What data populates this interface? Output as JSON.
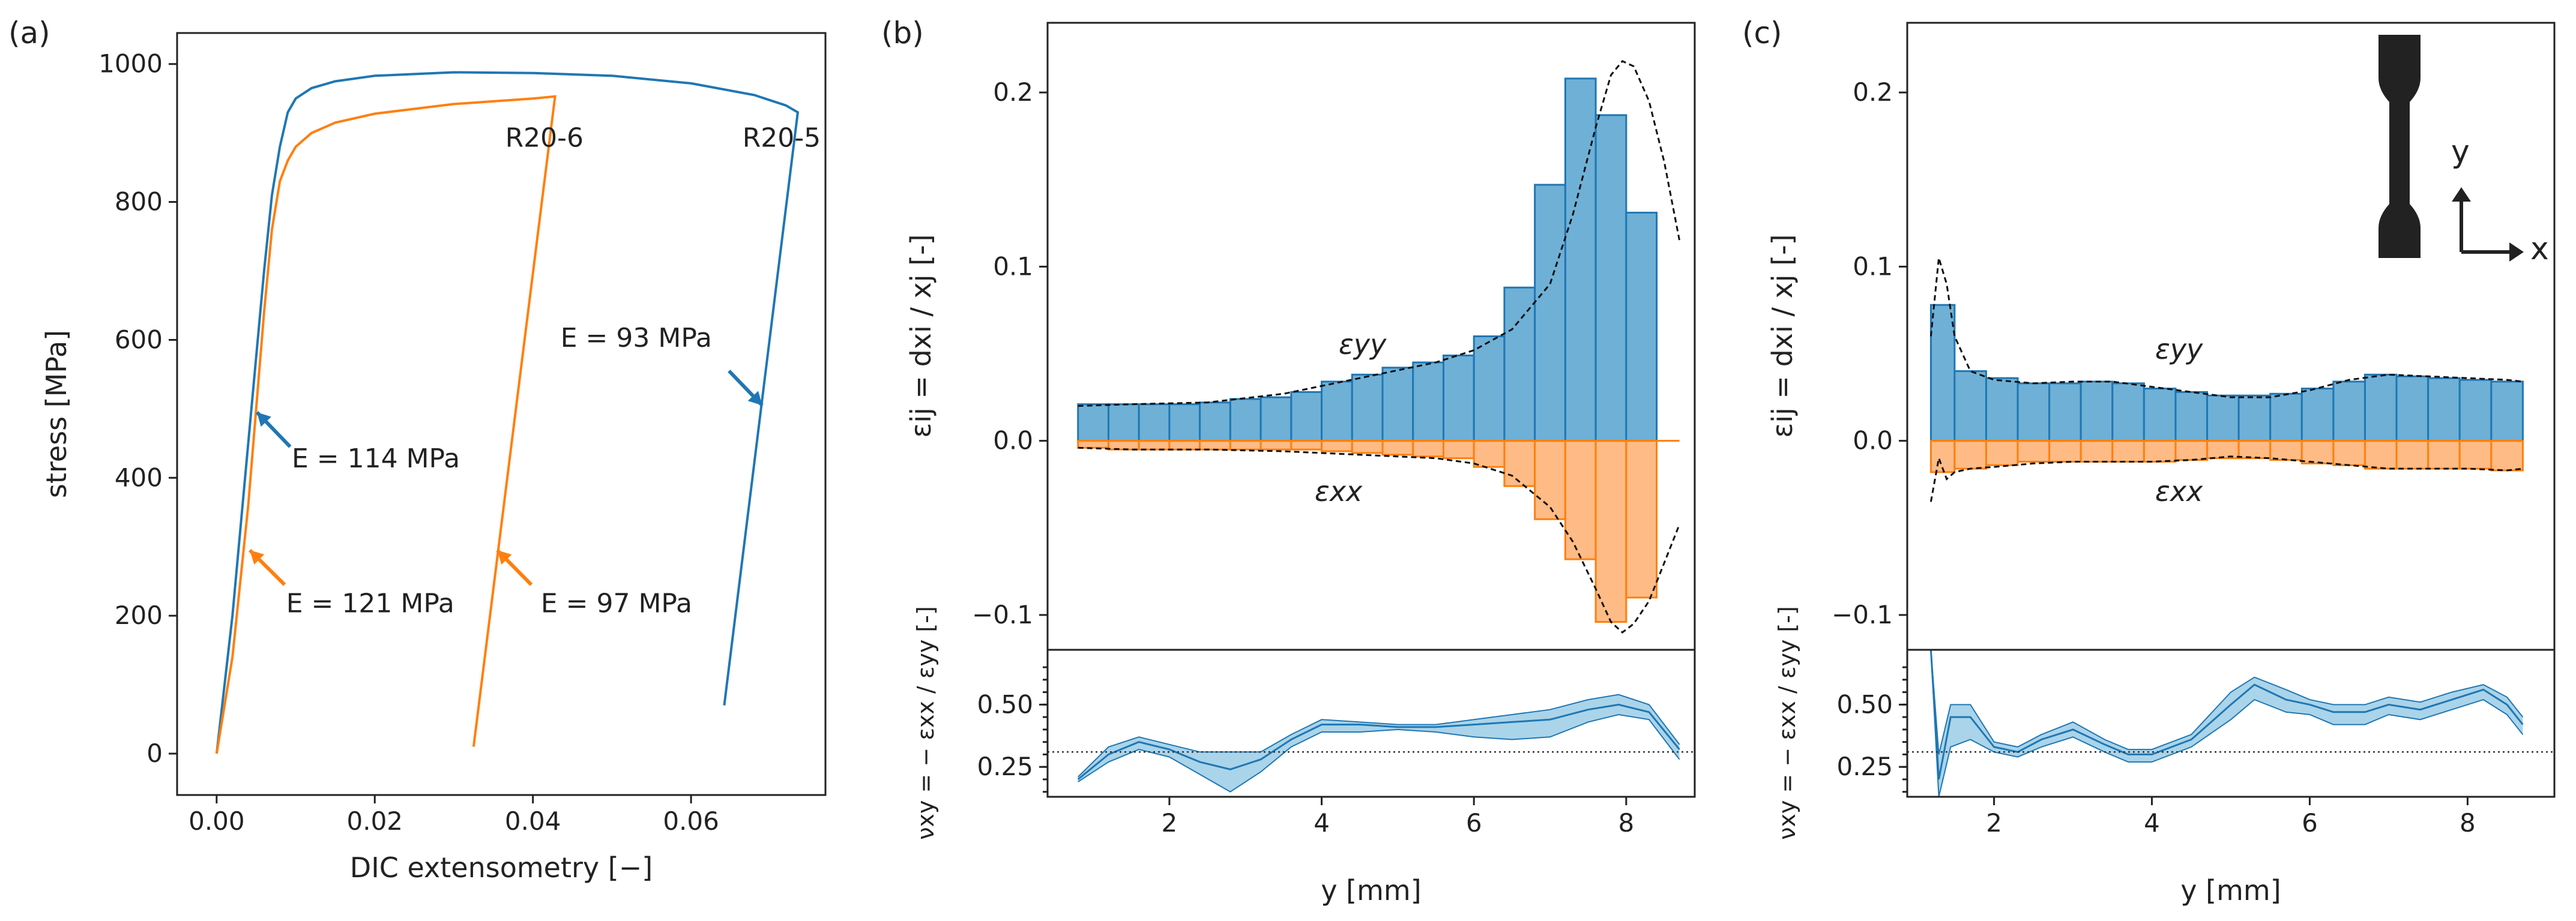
{
  "colors": {
    "blue": "#1f77b4",
    "orange": "#ff7f0e",
    "blue_fill": "#6fb0d6",
    "orange_fill": "#ffbb85",
    "band": "#8ec5e2"
  },
  "chart_data": [
    {
      "type": "line",
      "panel_label": "(a)",
      "xlabel": "DIC extensometry [−]",
      "ylabel": "stress [MPa]",
      "xlim": [
        -0.005,
        0.077
      ],
      "ylim": [
        -60,
        1045
      ],
      "xticks": [
        0.0,
        0.02,
        0.04,
        0.06
      ],
      "xtick_labels": [
        "0.00",
        "0.02",
        "0.04",
        "0.06"
      ],
      "yticks": [
        0,
        200,
        400,
        600,
        800,
        1000
      ],
      "ytick_labels": [
        "0",
        "200",
        "400",
        "600",
        "800",
        "1000"
      ],
      "series": [
        {
          "name": "R20-5",
          "color": "#1f77b4",
          "x": [
            0.0,
            0.002,
            0.004,
            0.006,
            0.007,
            0.008,
            0.009,
            0.01,
            0.012,
            0.015,
            0.02,
            0.03,
            0.04,
            0.05,
            0.06,
            0.068,
            0.072,
            0.0735,
            0.0735,
            0.0642
          ],
          "y": [
            0,
            200,
            450,
            700,
            810,
            880,
            930,
            950,
            965,
            975,
            983,
            988,
            987,
            983,
            972,
            955,
            940,
            930,
            930,
            70
          ]
        },
        {
          "name": "R20-6",
          "color": "#ff7f0e",
          "x": [
            0.0,
            0.002,
            0.004,
            0.006,
            0.007,
            0.008,
            0.009,
            0.01,
            0.012,
            0.015,
            0.02,
            0.03,
            0.04,
            0.0428,
            0.0428,
            0.0325
          ],
          "y": [
            0,
            140,
            360,
            640,
            760,
            830,
            860,
            880,
            900,
            915,
            928,
            942,
            950,
            953,
            953,
            10
          ]
        }
      ],
      "annotations": [
        {
          "text": "R20-6",
          "x": 0.0365,
          "y": 880
        },
        {
          "text": "R20-5",
          "x": 0.0665,
          "y": 880
        },
        {
          "text": "E = 114 MPa",
          "x": 0.0095,
          "y": 415
        },
        {
          "text": "E = 121 MPa",
          "x": 0.0088,
          "y": 205
        },
        {
          "text": "E = 97 MPa",
          "x": 0.041,
          "y": 205
        },
        {
          "text": "E = 93 MPa",
          "x": 0.0435,
          "y": 590
        }
      ]
    },
    {
      "type": "bar",
      "panel_label": "(b)",
      "ylabel": "εij = dxi / xj [-]",
      "ylim": [
        -0.12,
        0.24
      ],
      "yticks": [
        -0.1,
        0.0,
        0.1,
        0.2
      ],
      "ytick_labels": [
        "−0.1",
        "0.0",
        "0.1",
        "0.2"
      ],
      "xlim": [
        0.4,
        8.9
      ],
      "bin_edges": [
        0.8,
        1.2,
        1.6,
        2.0,
        2.4,
        2.8,
        3.2,
        3.6,
        4.0,
        4.4,
        4.8,
        5.2,
        5.6,
        6.0,
        6.4,
        6.8,
        7.2,
        7.6,
        8.0,
        8.4,
        8.7
      ],
      "series": [
        {
          "name": "εyy",
          "color": "#1f77b4",
          "values": [
            0.021,
            0.021,
            0.021,
            0.021,
            0.022,
            0.024,
            0.025,
            0.028,
            0.034,
            0.038,
            0.042,
            0.045,
            0.049,
            0.06,
            0.088,
            0.147,
            0.208,
            0.187,
            0.131
          ]
        },
        {
          "name": "εxx",
          "color": "#ff7f0e",
          "values": [
            -0.004,
            -0.005,
            -0.005,
            -0.005,
            -0.005,
            -0.005,
            -0.005,
            -0.005,
            -0.006,
            -0.007,
            -0.008,
            -0.009,
            -0.01,
            -0.015,
            -0.026,
            -0.045,
            -0.068,
            -0.104,
            -0.09
          ]
        }
      ],
      "fit_yy": {
        "x": [
          0.8,
          1.5,
          2.5,
          3.5,
          4.5,
          5.5,
          6.0,
          6.5,
          7.0,
          7.3,
          7.6,
          7.8,
          7.95,
          8.1,
          8.3,
          8.5,
          8.7
        ],
        "y": [
          0.02,
          0.021,
          0.022,
          0.027,
          0.036,
          0.045,
          0.052,
          0.064,
          0.09,
          0.13,
          0.18,
          0.21,
          0.218,
          0.215,
          0.195,
          0.16,
          0.115
        ]
      },
      "fit_xx": {
        "x": [
          0.8,
          1.5,
          2.5,
          3.5,
          4.5,
          5.5,
          6.0,
          6.5,
          7.0,
          7.3,
          7.6,
          7.8,
          7.95,
          8.1,
          8.3,
          8.5,
          8.7
        ],
        "y": [
          -0.004,
          -0.005,
          -0.005,
          -0.006,
          -0.008,
          -0.01,
          -0.013,
          -0.02,
          -0.038,
          -0.058,
          -0.085,
          -0.104,
          -0.11,
          -0.105,
          -0.092,
          -0.07,
          -0.048
        ]
      },
      "label_yy": "εyy",
      "label_xx": "εxx"
    },
    {
      "type": "line",
      "panel_label": "(b-lower)",
      "xlabel": "y [mm]",
      "ylabel": "νxy = − εxx / εyy [-]",
      "xlim": [
        0.4,
        8.9
      ],
      "ylim": [
        0.13,
        0.72
      ],
      "xticks": [
        2,
        4,
        6,
        8
      ],
      "xtick_labels": [
        "2",
        "4",
        "6",
        "8"
      ],
      "yticks": [
        0.25,
        0.5
      ],
      "ytick_labels": [
        "0.25",
        "0.50"
      ],
      "reference_line": 0.31,
      "x": [
        0.8,
        1.2,
        1.6,
        2.0,
        2.4,
        2.8,
        3.2,
        3.6,
        4.0,
        4.5,
        5.0,
        5.5,
        6.0,
        6.5,
        7.0,
        7.5,
        7.9,
        8.3,
        8.7
      ],
      "mean": [
        0.2,
        0.3,
        0.35,
        0.32,
        0.27,
        0.24,
        0.28,
        0.36,
        0.42,
        0.42,
        0.41,
        0.41,
        0.42,
        0.43,
        0.44,
        0.48,
        0.5,
        0.47,
        0.32
      ],
      "upper": [
        0.21,
        0.33,
        0.37,
        0.34,
        0.31,
        0.31,
        0.31,
        0.38,
        0.44,
        0.43,
        0.42,
        0.42,
        0.44,
        0.46,
        0.48,
        0.52,
        0.54,
        0.5,
        0.34
      ],
      "lower": [
        0.19,
        0.27,
        0.32,
        0.29,
        0.22,
        0.15,
        0.23,
        0.33,
        0.39,
        0.39,
        0.4,
        0.39,
        0.37,
        0.36,
        0.37,
        0.43,
        0.46,
        0.44,
        0.28
      ]
    },
    {
      "type": "bar",
      "panel_label": "(c)",
      "ylabel": "εij = dxi / xj [-]",
      "ylim": [
        -0.12,
        0.24
      ],
      "yticks": [
        -0.1,
        0.0,
        0.1,
        0.2
      ],
      "ytick_labels": [
        "−0.1",
        "0.0",
        "0.1",
        "0.2"
      ],
      "xlim": [
        0.9,
        9.1
      ],
      "bin_edges": [
        1.2,
        1.5,
        1.9,
        2.3,
        2.7,
        3.1,
        3.5,
        3.9,
        4.3,
        4.7,
        5.1,
        5.5,
        5.9,
        6.3,
        6.7,
        7.1,
        7.5,
        7.9,
        8.3,
        8.7
      ],
      "series": [
        {
          "name": "εyy",
          "color": "#1f77b4",
          "values": [
            0.078,
            0.04,
            0.036,
            0.033,
            0.033,
            0.034,
            0.033,
            0.03,
            0.028,
            0.026,
            0.026,
            0.027,
            0.03,
            0.034,
            0.038,
            0.037,
            0.036,
            0.035,
            0.034
          ]
        },
        {
          "name": "εxx",
          "color": "#ff7f0e",
          "values": [
            -0.018,
            -0.016,
            -0.014,
            -0.012,
            -0.012,
            -0.012,
            -0.012,
            -0.012,
            -0.011,
            -0.01,
            -0.01,
            -0.011,
            -0.013,
            -0.014,
            -0.016,
            -0.016,
            -0.016,
            -0.016,
            -0.017
          ]
        }
      ],
      "fit_yy": {
        "x": [
          1.2,
          1.3,
          1.4,
          1.5,
          1.7,
          2.0,
          2.5,
          3.0,
          3.5,
          4.0,
          4.5,
          5.0,
          5.5,
          6.0,
          6.5,
          7.0,
          7.5,
          8.0,
          8.5,
          8.7
        ],
        "y": [
          0.06,
          0.105,
          0.09,
          0.06,
          0.04,
          0.035,
          0.033,
          0.034,
          0.034,
          0.031,
          0.028,
          0.025,
          0.025,
          0.029,
          0.035,
          0.038,
          0.037,
          0.036,
          0.035,
          0.034
        ]
      },
      "fit_xx": {
        "x": [
          1.2,
          1.3,
          1.4,
          1.5,
          1.7,
          2.0,
          2.5,
          3.0,
          3.5,
          4.0,
          4.5,
          5.0,
          5.5,
          6.0,
          6.5,
          7.0,
          7.5,
          8.0,
          8.5,
          8.7
        ],
        "y": [
          -0.035,
          -0.01,
          -0.022,
          -0.018,
          -0.016,
          -0.015,
          -0.013,
          -0.012,
          -0.012,
          -0.012,
          -0.011,
          -0.009,
          -0.01,
          -0.012,
          -0.014,
          -0.016,
          -0.016,
          -0.016,
          -0.017,
          -0.016
        ]
      },
      "label_yy": "εyy",
      "label_xx": "εxx",
      "inset_axes_labels": {
        "y": "y",
        "x": "x"
      }
    },
    {
      "type": "line",
      "panel_label": "(c-lower)",
      "xlabel": "y [mm]",
      "ylabel": "νxy = − εxx / εyy [-]",
      "xlim": [
        0.9,
        9.1
      ],
      "ylim": [
        0.13,
        0.72
      ],
      "xticks": [
        2,
        4,
        6,
        8
      ],
      "xtick_labels": [
        "2",
        "4",
        "6",
        "8"
      ],
      "yticks": [
        0.25,
        0.5
      ],
      "ytick_labels": [
        "0.25",
        "0.50"
      ],
      "reference_line": 0.31,
      "x": [
        1.2,
        1.3,
        1.45,
        1.7,
        2.0,
        2.3,
        2.6,
        3.0,
        3.4,
        3.7,
        4.0,
        4.5,
        5.0,
        5.3,
        5.7,
        6.0,
        6.3,
        6.7,
        7.0,
        7.4,
        7.8,
        8.2,
        8.5,
        8.7
      ],
      "mean": [
        0.72,
        0.2,
        0.45,
        0.45,
        0.33,
        0.31,
        0.36,
        0.4,
        0.34,
        0.3,
        0.3,
        0.36,
        0.5,
        0.58,
        0.52,
        0.5,
        0.47,
        0.47,
        0.5,
        0.48,
        0.52,
        0.56,
        0.5,
        0.42
      ],
      "upper": [
        0.72,
        0.3,
        0.5,
        0.5,
        0.35,
        0.33,
        0.38,
        0.43,
        0.36,
        0.32,
        0.32,
        0.38,
        0.55,
        0.61,
        0.56,
        0.52,
        0.5,
        0.5,
        0.53,
        0.51,
        0.55,
        0.58,
        0.53,
        0.45
      ],
      "lower": [
        0.72,
        0.13,
        0.33,
        0.36,
        0.31,
        0.29,
        0.33,
        0.37,
        0.31,
        0.27,
        0.27,
        0.33,
        0.44,
        0.52,
        0.47,
        0.46,
        0.42,
        0.42,
        0.46,
        0.44,
        0.48,
        0.52,
        0.46,
        0.38
      ]
    }
  ]
}
